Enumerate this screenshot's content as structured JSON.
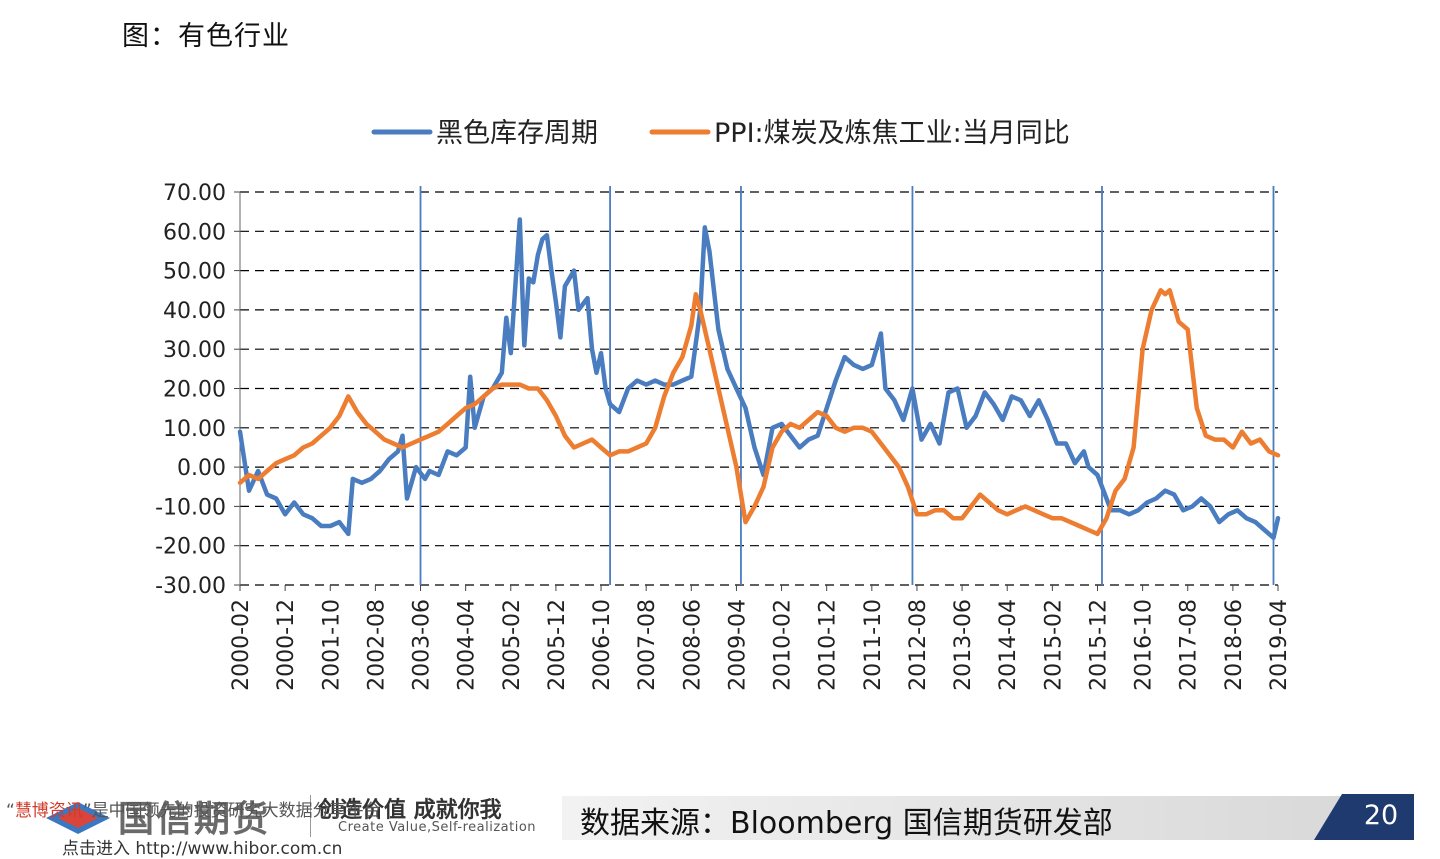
{
  "page": {
    "title": "图：有色行业",
    "source": "数据来源：Bloomberg  国信期货研发部",
    "page_number": "20",
    "logo_name": "国信期货",
    "slogan": "创造价值 成就你我",
    "slogan_en": "Create Value,Self-realization",
    "watermark_line1_red": "慧博资讯",
    "watermark_line1_rest": "是中国领先的投资研究大数据分享平台",
    "watermark_line2": "点击进入 http://www.hibor.com.cn"
  },
  "chart_data": {
    "type": "line",
    "title": "",
    "xlabel": "",
    "ylabel": "",
    "ylim": [
      -30,
      70
    ],
    "yticks": [
      "70.00",
      "60.00",
      "50.00",
      "40.00",
      "30.00",
      "20.00",
      "10.00",
      "0.00",
      "-10.00",
      "-20.00",
      "-30.00"
    ],
    "yticks_values": [
      70,
      60,
      50,
      40,
      30,
      20,
      10,
      0,
      -10,
      -20,
      -30
    ],
    "xticks": [
      "2000-02",
      "2000-12",
      "2001-10",
      "2002-08",
      "2003-06",
      "2004-04",
      "2005-02",
      "2005-12",
      "2006-10",
      "2007-08",
      "2008-06",
      "2009-04",
      "2010-02",
      "2010-12",
      "2011-10",
      "2012-08",
      "2013-06",
      "2014-04",
      "2015-02",
      "2015-12",
      "2016-10",
      "2017-08",
      "2018-06",
      "2019-04"
    ],
    "x_start": "2000-02",
    "x_end": "2019-04",
    "grid": "horizontal dashed",
    "legend": "top",
    "cycle_markers": [
      "2003-06",
      "2006-12",
      "2009-05",
      "2012-07",
      "2016-01",
      "2019-03"
    ],
    "series": [
      {
        "name": "黑色库存周期",
        "color": "#4a7cc0",
        "points": [
          [
            "2000-02",
            9
          ],
          [
            "2000-04",
            -6
          ],
          [
            "2000-06",
            -1
          ],
          [
            "2000-08",
            -7
          ],
          [
            "2000-10",
            -8
          ],
          [
            "2000-12",
            -12
          ],
          [
            "2001-02",
            -9
          ],
          [
            "2001-04",
            -12
          ],
          [
            "2001-06",
            -13
          ],
          [
            "2001-08",
            -15
          ],
          [
            "2001-10",
            -15
          ],
          [
            "2001-12",
            -14
          ],
          [
            "2002-02",
            -17
          ],
          [
            "2002-03",
            -3
          ],
          [
            "2002-05",
            -4
          ],
          [
            "2002-07",
            -3
          ],
          [
            "2002-09",
            -1
          ],
          [
            "2002-11",
            2
          ],
          [
            "2003-01",
            4
          ],
          [
            "2003-02",
            8
          ],
          [
            "2003-03",
            -8
          ],
          [
            "2003-05",
            0
          ],
          [
            "2003-07",
            -3
          ],
          [
            "2003-08",
            -1
          ],
          [
            "2003-10",
            -2
          ],
          [
            "2003-12",
            4
          ],
          [
            "2004-02",
            3
          ],
          [
            "2004-04",
            5
          ],
          [
            "2004-05",
            23
          ],
          [
            "2004-06",
            10
          ],
          [
            "2004-08",
            18
          ],
          [
            "2004-09",
            19
          ],
          [
            "2004-10",
            20
          ],
          [
            "2004-12",
            24
          ],
          [
            "2005-01",
            38
          ],
          [
            "2005-02",
            29
          ],
          [
            "2005-04",
            63
          ],
          [
            "2005-05",
            31
          ],
          [
            "2005-06",
            48
          ],
          [
            "2005-07",
            47
          ],
          [
            "2005-08",
            54
          ],
          [
            "2005-09",
            58
          ],
          [
            "2005-10",
            59
          ],
          [
            "2005-11",
            50
          ],
          [
            "2005-12",
            42
          ],
          [
            "2006-01",
            33
          ],
          [
            "2006-02",
            46
          ],
          [
            "2006-04",
            50
          ],
          [
            "2006-05",
            40
          ],
          [
            "2006-07",
            43
          ],
          [
            "2006-08",
            30
          ],
          [
            "2006-09",
            24
          ],
          [
            "2006-10",
            29
          ],
          [
            "2006-11",
            20
          ],
          [
            "2006-12",
            16
          ],
          [
            "2007-02",
            14
          ],
          [
            "2007-04",
            20
          ],
          [
            "2007-06",
            22
          ],
          [
            "2007-08",
            21
          ],
          [
            "2007-10",
            22
          ],
          [
            "2007-12",
            21
          ],
          [
            "2008-02",
            21
          ],
          [
            "2008-04",
            22
          ],
          [
            "2008-06",
            23
          ],
          [
            "2008-08",
            40
          ],
          [
            "2008-09",
            61
          ],
          [
            "2008-10",
            55
          ],
          [
            "2008-12",
            35
          ],
          [
            "2009-02",
            25
          ],
          [
            "2009-04",
            20
          ],
          [
            "2009-06",
            15
          ],
          [
            "2009-08",
            5
          ],
          [
            "2009-10",
            -2
          ],
          [
            "2009-12",
            10
          ],
          [
            "2010-02",
            11
          ],
          [
            "2010-04",
            8
          ],
          [
            "2010-06",
            5
          ],
          [
            "2010-08",
            7
          ],
          [
            "2010-10",
            8
          ],
          [
            "2010-12",
            15
          ],
          [
            "2011-02",
            22
          ],
          [
            "2011-04",
            28
          ],
          [
            "2011-06",
            26
          ],
          [
            "2011-08",
            25
          ],
          [
            "2011-10",
            26
          ],
          [
            "2011-12",
            34
          ],
          [
            "2012-01",
            20
          ],
          [
            "2012-03",
            17
          ],
          [
            "2012-05",
            12
          ],
          [
            "2012-07",
            20
          ],
          [
            "2012-09",
            7
          ],
          [
            "2012-11",
            11
          ],
          [
            "2013-01",
            6
          ],
          [
            "2013-03",
            19
          ],
          [
            "2013-05",
            20
          ],
          [
            "2013-07",
            10
          ],
          [
            "2013-09",
            13
          ],
          [
            "2013-11",
            19
          ],
          [
            "2014-01",
            16
          ],
          [
            "2014-03",
            12
          ],
          [
            "2014-05",
            18
          ],
          [
            "2014-07",
            17
          ],
          [
            "2014-09",
            13
          ],
          [
            "2014-11",
            17
          ],
          [
            "2015-01",
            12
          ],
          [
            "2015-03",
            6
          ],
          [
            "2015-05",
            6
          ],
          [
            "2015-07",
            1
          ],
          [
            "2015-09",
            4
          ],
          [
            "2015-10",
            0
          ],
          [
            "2015-12",
            -2
          ],
          [
            "2016-01",
            -5
          ],
          [
            "2016-03",
            -11
          ],
          [
            "2016-05",
            -11
          ],
          [
            "2016-07",
            -12
          ],
          [
            "2016-09",
            -11
          ],
          [
            "2016-11",
            -9
          ],
          [
            "2017-01",
            -8
          ],
          [
            "2017-03",
            -6
          ],
          [
            "2017-05",
            -7
          ],
          [
            "2017-07",
            -11
          ],
          [
            "2017-09",
            -10
          ],
          [
            "2017-11",
            -8
          ],
          [
            "2018-01",
            -10
          ],
          [
            "2018-03",
            -14
          ],
          [
            "2018-05",
            -12
          ],
          [
            "2018-07",
            -11
          ],
          [
            "2018-09",
            -13
          ],
          [
            "2018-11",
            -14
          ],
          [
            "2019-01",
            -16
          ],
          [
            "2019-03",
            -18
          ],
          [
            "2019-04",
            -13
          ]
        ]
      },
      {
        "name": "PPI:煤炭及炼焦工业:当月同比",
        "color": "#ed7d31",
        "points": [
          [
            "2000-02",
            -4
          ],
          [
            "2000-04",
            -2
          ],
          [
            "2000-06",
            -3
          ],
          [
            "2000-08",
            -1
          ],
          [
            "2000-10",
            1
          ],
          [
            "2000-12",
            2
          ],
          [
            "2001-02",
            3
          ],
          [
            "2001-04",
            5
          ],
          [
            "2001-06",
            6
          ],
          [
            "2001-08",
            8
          ],
          [
            "2001-10",
            10
          ],
          [
            "2001-12",
            13
          ],
          [
            "2002-02",
            18
          ],
          [
            "2002-04",
            14
          ],
          [
            "2002-06",
            11
          ],
          [
            "2002-08",
            9
          ],
          [
            "2002-10",
            7
          ],
          [
            "2002-12",
            6
          ],
          [
            "2003-02",
            5
          ],
          [
            "2003-04",
            6
          ],
          [
            "2003-06",
            7
          ],
          [
            "2003-08",
            8
          ],
          [
            "2003-10",
            9
          ],
          [
            "2003-12",
            11
          ],
          [
            "2004-02",
            13
          ],
          [
            "2004-04",
            15
          ],
          [
            "2004-06",
            16
          ],
          [
            "2004-08",
            18
          ],
          [
            "2004-10",
            20
          ],
          [
            "2004-12",
            21
          ],
          [
            "2005-02",
            21
          ],
          [
            "2005-04",
            21
          ],
          [
            "2005-06",
            20
          ],
          [
            "2005-08",
            20
          ],
          [
            "2005-10",
            17
          ],
          [
            "2005-12",
            13
          ],
          [
            "2006-02",
            8
          ],
          [
            "2006-04",
            5
          ],
          [
            "2006-06",
            6
          ],
          [
            "2006-08",
            7
          ],
          [
            "2006-10",
            5
          ],
          [
            "2006-12",
            3
          ],
          [
            "2007-02",
            4
          ],
          [
            "2007-04",
            4
          ],
          [
            "2007-06",
            5
          ],
          [
            "2007-08",
            6
          ],
          [
            "2007-10",
            10
          ],
          [
            "2007-12",
            18
          ],
          [
            "2008-02",
            24
          ],
          [
            "2008-04",
            28
          ],
          [
            "2008-06",
            36
          ],
          [
            "2008-07",
            44
          ],
          [
            "2008-08",
            40
          ],
          [
            "2008-10",
            30
          ],
          [
            "2008-12",
            20
          ],
          [
            "2009-02",
            10
          ],
          [
            "2009-04",
            0
          ],
          [
            "2009-06",
            -14
          ],
          [
            "2009-08",
            -10
          ],
          [
            "2009-10",
            -5
          ],
          [
            "2009-12",
            5
          ],
          [
            "2010-02",
            9
          ],
          [
            "2010-04",
            11
          ],
          [
            "2010-06",
            10
          ],
          [
            "2010-08",
            12
          ],
          [
            "2010-10",
            14
          ],
          [
            "2010-12",
            13
          ],
          [
            "2011-02",
            10
          ],
          [
            "2011-04",
            9
          ],
          [
            "2011-06",
            10
          ],
          [
            "2011-08",
            10
          ],
          [
            "2011-10",
            9
          ],
          [
            "2011-12",
            6
          ],
          [
            "2012-02",
            3
          ],
          [
            "2012-04",
            0
          ],
          [
            "2012-06",
            -5
          ],
          [
            "2012-08",
            -12
          ],
          [
            "2012-10",
            -12
          ],
          [
            "2012-12",
            -11
          ],
          [
            "2013-02",
            -11
          ],
          [
            "2013-04",
            -13
          ],
          [
            "2013-06",
            -13
          ],
          [
            "2013-08",
            -10
          ],
          [
            "2013-10",
            -7
          ],
          [
            "2013-12",
            -9
          ],
          [
            "2014-02",
            -11
          ],
          [
            "2014-04",
            -12
          ],
          [
            "2014-06",
            -11
          ],
          [
            "2014-08",
            -10
          ],
          [
            "2014-10",
            -11
          ],
          [
            "2014-12",
            -12
          ],
          [
            "2015-02",
            -13
          ],
          [
            "2015-04",
            -13
          ],
          [
            "2015-06",
            -14
          ],
          [
            "2015-08",
            -15
          ],
          [
            "2015-10",
            -16
          ],
          [
            "2015-12",
            -17
          ],
          [
            "2016-02",
            -13
          ],
          [
            "2016-04",
            -6
          ],
          [
            "2016-06",
            -3
          ],
          [
            "2016-08",
            5
          ],
          [
            "2016-10",
            30
          ],
          [
            "2016-12",
            40
          ],
          [
            "2017-02",
            45
          ],
          [
            "2017-03",
            44
          ],
          [
            "2017-04",
            45
          ],
          [
            "2017-06",
            37
          ],
          [
            "2017-08",
            35
          ],
          [
            "2017-10",
            15
          ],
          [
            "2017-12",
            8
          ],
          [
            "2018-02",
            7
          ],
          [
            "2018-04",
            7
          ],
          [
            "2018-06",
            5
          ],
          [
            "2018-08",
            9
          ],
          [
            "2018-10",
            6
          ],
          [
            "2018-12",
            7
          ],
          [
            "2019-02",
            4
          ],
          [
            "2019-04",
            3
          ]
        ]
      }
    ]
  }
}
